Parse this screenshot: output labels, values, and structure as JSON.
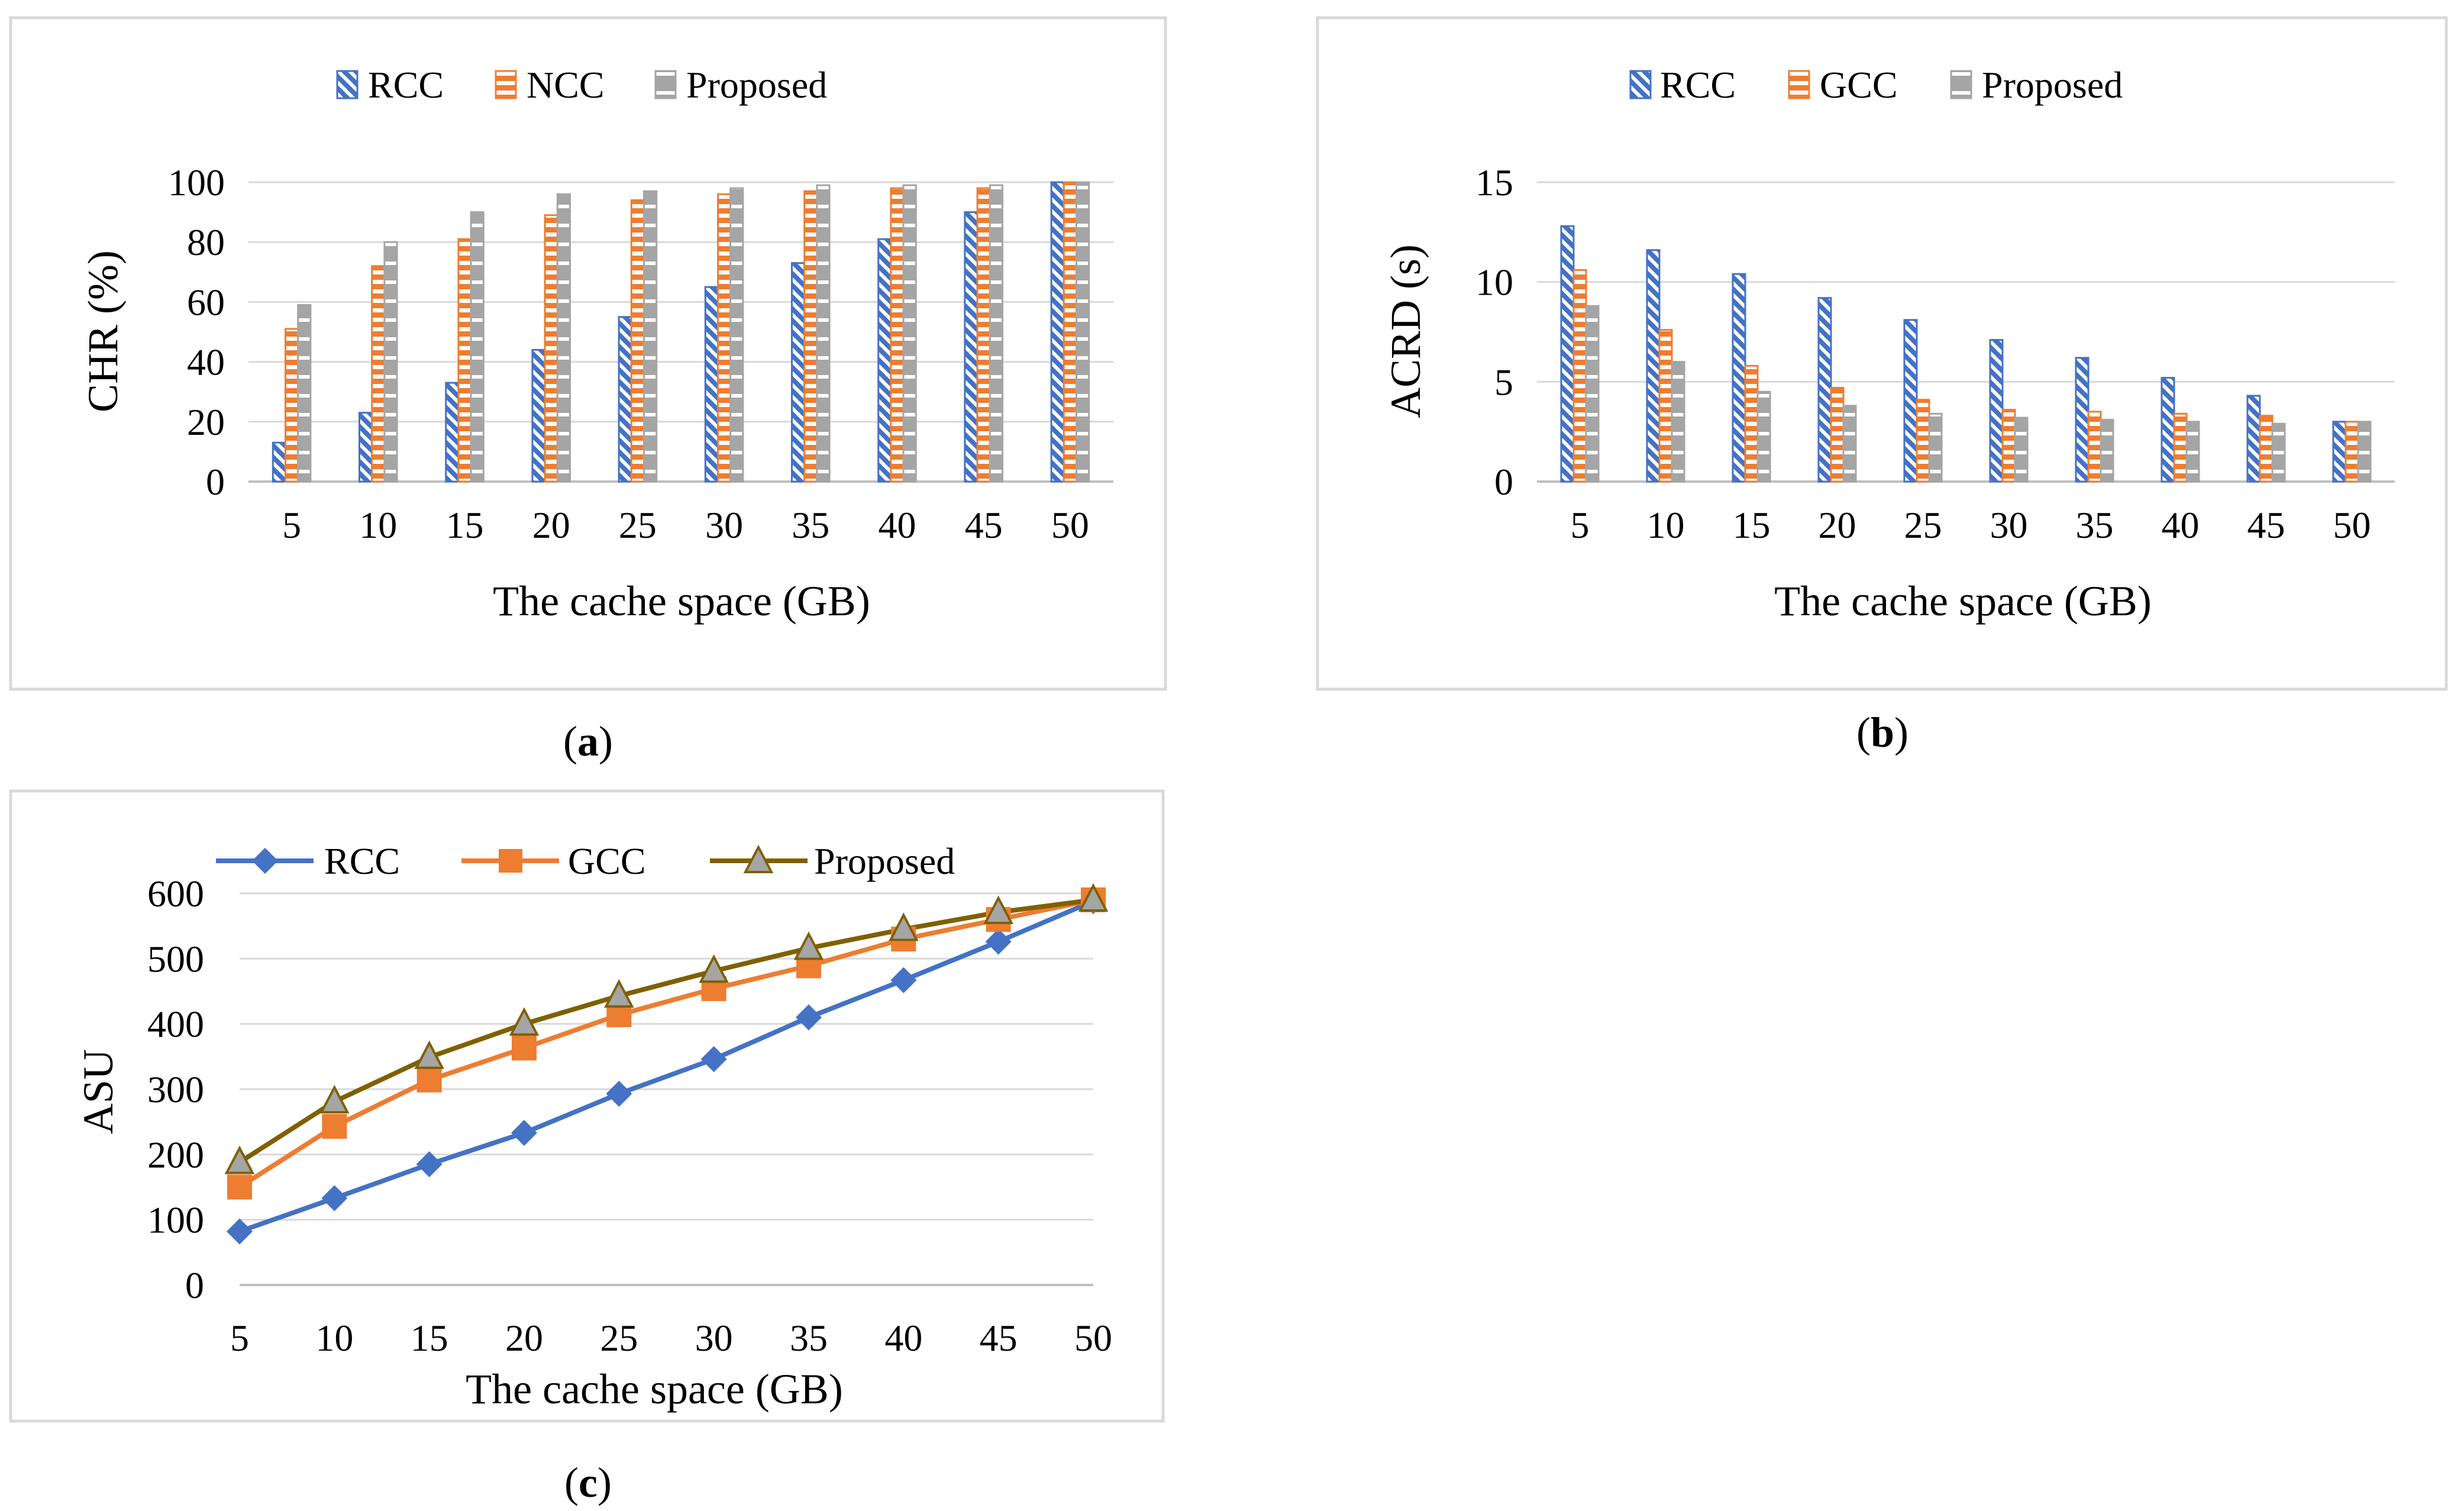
{
  "colors": {
    "rcc_blue": "#4472C4",
    "gcc_orange": "#ED7D31",
    "proposed_gray": "#A5A5A5",
    "proposed_line": "#7F6000",
    "frame": "#D9D9D9",
    "grid": "#D9D9D9",
    "axis": "#BFBFBF"
  },
  "chart_data": [
    {
      "type": "bar",
      "panel_label": "a",
      "xlabel": "The cache space (GB)",
      "ylabel": "CHR (%)",
      "ylim": [
        0,
        100
      ],
      "yticks": [
        0,
        20,
        40,
        60,
        80,
        100
      ],
      "grid": true,
      "legend_position": "top",
      "categories": [
        "5",
        "10",
        "15",
        "20",
        "25",
        "30",
        "35",
        "40",
        "45",
        "50"
      ],
      "series": [
        {
          "name": "RCC",
          "values": [
            13,
            23,
            33,
            44,
            55,
            65,
            73,
            81,
            90,
            100
          ],
          "pattern": "diagonal"
        },
        {
          "name": "NCC",
          "values": [
            51,
            72,
            81,
            89,
            94,
            96,
            97,
            98,
            98,
            100
          ],
          "pattern": "horizontal"
        },
        {
          "name": "Proposed",
          "values": [
            59,
            80,
            90,
            96,
            97,
            98,
            99,
            99,
            99,
            100
          ],
          "pattern": "dashed"
        }
      ]
    },
    {
      "type": "bar",
      "panel_label": "b",
      "xlabel": "The cache space (GB)",
      "ylabel": "ACRD (s)",
      "ylim": [
        0,
        15
      ],
      "yticks": [
        0,
        5,
        10,
        15
      ],
      "grid": true,
      "legend_position": "top",
      "categories": [
        "5",
        "10",
        "15",
        "20",
        "25",
        "30",
        "35",
        "40",
        "45",
        "50"
      ],
      "series": [
        {
          "name": "RCC",
          "values": [
            12.8,
            11.6,
            10.4,
            9.2,
            8.1,
            7.1,
            6.2,
            5.2,
            4.3,
            3.0
          ],
          "pattern": "diagonal"
        },
        {
          "name": "GCC",
          "values": [
            10.6,
            7.6,
            5.8,
            4.7,
            4.1,
            3.6,
            3.5,
            3.4,
            3.3,
            3.0
          ],
          "pattern": "horizontal"
        },
        {
          "name": "Proposed",
          "values": [
            8.8,
            6.0,
            4.5,
            3.8,
            3.4,
            3.2,
            3.1,
            3.0,
            2.9,
            3.0
          ],
          "pattern": "dashed"
        }
      ]
    },
    {
      "type": "line",
      "panel_label": "c",
      "xlabel": "The cache space (GB)",
      "ylabel": "ASU",
      "ylim": [
        0,
        600
      ],
      "yticks": [
        0,
        100,
        200,
        300,
        400,
        500,
        600
      ],
      "grid": true,
      "legend_position": "top",
      "x": [
        "5",
        "10",
        "15",
        "20",
        "25",
        "30",
        "35",
        "40",
        "45",
        "50"
      ],
      "series": [
        {
          "name": "RCC",
          "values": [
            82,
            133,
            185,
            233,
            293,
            346,
            410,
            467,
            526,
            588
          ],
          "marker": "diamond"
        },
        {
          "name": "GCC",
          "values": [
            150,
            243,
            314,
            363,
            414,
            454,
            489,
            530,
            560,
            590
          ],
          "marker": "square"
        },
        {
          "name": "Proposed",
          "values": [
            188,
            281,
            349,
            400,
            443,
            481,
            516,
            545,
            571,
            590
          ],
          "marker": "triangle"
        }
      ]
    }
  ]
}
